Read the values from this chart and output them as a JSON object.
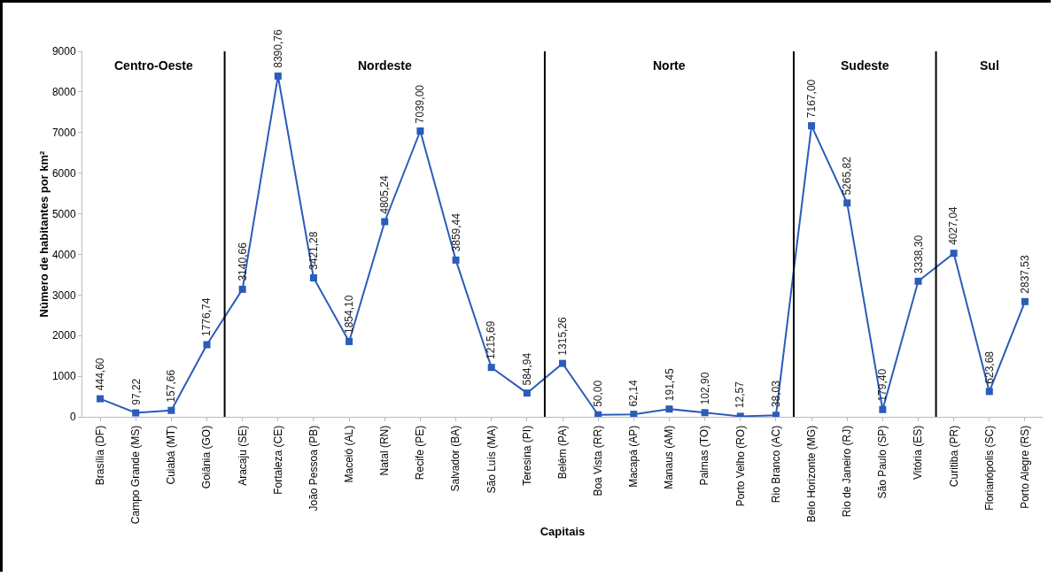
{
  "chart_data": {
    "type": "line",
    "xlabel": "Capitais",
    "ylabel": "Número de habitantes por km²",
    "categories": [
      "Brasília (DF)",
      "Campo Grande (MS)",
      "Cuiabá (MT)",
      "Goiânia (GO)",
      "Aracaju (SE)",
      "Fortaleza (CE)",
      "João Pessoa (PB)",
      "Maceió (AL)",
      "Natal (RN)",
      "Recife (PE)",
      "Salvador (BA)",
      "São Luís (MA)",
      "Teresina (PI)",
      "Belém (PA)",
      "Boa Vista (RR)",
      "Macapá (AP)",
      "Manaus (AM)",
      "Palmas (TO)",
      "Porto Velho (RO)",
      "Rio Branco (AC)",
      "Belo Horizonte (MG)",
      "Rio de Janeiro (RJ)",
      "São Paulo (SP)",
      "Vitória (ES)",
      "Curitiba (PR)",
      "Florianópolis (SC)",
      "Porto Alegre (RS)"
    ],
    "series": [
      {
        "color": "#2a5cb8",
        "values": [
          444.6,
          97.22,
          157.66,
          1776.74,
          3140.66,
          8390.76,
          3421.28,
          1854.1,
          4805.24,
          7039.0,
          3859.44,
          1215.69,
          584.94,
          1315.26,
          50.0,
          62.14,
          191.45,
          102.9,
          12.57,
          38.03,
          7167.0,
          5265.82,
          179.4,
          3338.3,
          4027.04,
          623.68,
          2837.53
        ],
        "value_labels": [
          "444,60",
          "97,22",
          "157,66",
          "1776,74",
          "3140,66",
          "8390,76",
          "3421,28",
          "1854,10",
          "4805,24",
          "7039,00",
          "3859,44",
          "1215,69",
          "584,94",
          "1315,26",
          "50,00",
          "62,14",
          "191,45",
          "102,90",
          "12,57",
          "38,03",
          "7167,00",
          "5265,82",
          "179,40",
          "3338,30",
          "4027,04",
          "623,68",
          "2837,53"
        ]
      }
    ],
    "ylim": [
      0,
      9000
    ],
    "yticks": [
      0,
      1000,
      2000,
      3000,
      4000,
      5000,
      6000,
      7000,
      8000,
      9000
    ],
    "grid": false,
    "marker": "square",
    "line_style": "solid",
    "annotations": [
      "Centro-Oeste",
      "Nordeste",
      "Norte",
      "Sudeste",
      "Sul"
    ]
  }
}
